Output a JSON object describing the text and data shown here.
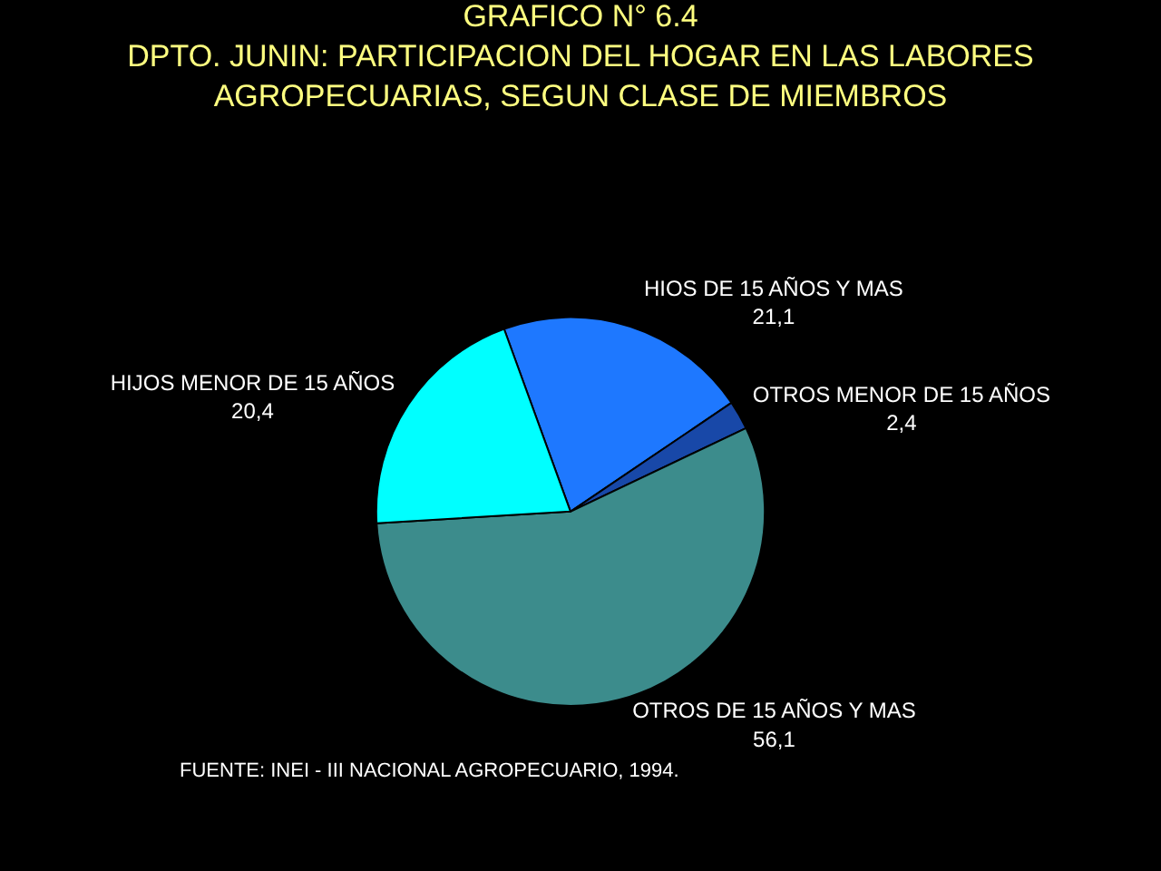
{
  "chart_data": {
    "type": "pie",
    "title": "GRAFICO N° 6.4",
    "subtitle": "DPTO. JUNIN: PARTICIPACION DEL HOGAR EN LAS LABORES AGROPECUARIAS, SEGUN CLASE DE MIEMBROS",
    "categories": [
      "HIOS DE 15 AÑOS Y MAS",
      "OTROS MENOR DE 15 AÑOS",
      "OTROS DE 15 AÑOS Y MAS",
      "HIJOS MENOR DE 15 AÑOS"
    ],
    "values": [
      21.1,
      2.4,
      56.1,
      20.4
    ],
    "value_labels": [
      "21,1",
      "2,4",
      "56,1",
      "20,4"
    ],
    "colors": [
      "#1e78ff",
      "#1848a8",
      "#3c8c8c",
      "#00ffff"
    ],
    "legend": false,
    "annotations": [
      "FUENTE: INEI - III NACIONAL AGROPECUARIO, 1994."
    ]
  }
}
